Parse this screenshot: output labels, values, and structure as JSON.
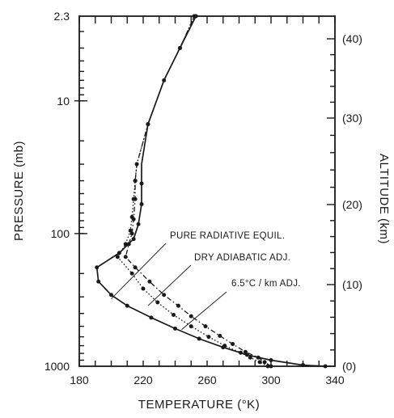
{
  "chart_data": {
    "type": "line",
    "title": "",
    "xlabel": "TEMPERATURE (°K)",
    "ylabel_left": "PRESSURE (mb)",
    "ylabel_right": "ALTITUDE (km)",
    "xlim": [
      180,
      340
    ],
    "ylim": [
      1000,
      2.3
    ],
    "y_scale": "log",
    "x_tick_labels": [
      "180",
      "220",
      "260",
      "300",
      "340"
    ],
    "y_tick_labels": [
      "2.3",
      "10",
      "100",
      "1000"
    ],
    "right_tick_labels": [
      "(40)",
      "(30)",
      "(20)",
      "(10)",
      "(0)"
    ],
    "series": [
      {
        "name": "PURE RADIATIVE EQUIL.",
        "style": "solid",
        "points": [
          {
            "x": 334,
            "y": 1000
          },
          {
            "x": 320,
            "y": 980
          },
          {
            "x": 300,
            "y": 900
          },
          {
            "x": 285,
            "y": 820
          },
          {
            "x": 270,
            "y": 720
          },
          {
            "x": 255,
            "y": 620
          },
          {
            "x": 240,
            "y": 520
          },
          {
            "x": 225,
            "y": 430
          },
          {
            "x": 210,
            "y": 350
          },
          {
            "x": 200,
            "y": 290
          },
          {
            "x": 192,
            "y": 230
          },
          {
            "x": 191,
            "y": 180
          },
          {
            "x": 205,
            "y": 140
          },
          {
            "x": 214,
            "y": 110
          },
          {
            "x": 217,
            "y": 85
          },
          {
            "x": 219,
            "y": 60
          },
          {
            "x": 219,
            "y": 42
          },
          {
            "x": 219,
            "y": 30
          },
          {
            "x": 223,
            "y": 15
          },
          {
            "x": 233,
            "y": 7
          },
          {
            "x": 243,
            "y": 4
          },
          {
            "x": 253,
            "y": 2.3
          }
        ]
      },
      {
        "name": "DRY ADIABATIC ADJ.",
        "style": "dotted",
        "points": [
          {
            "x": 298,
            "y": 1000
          },
          {
            "x": 293,
            "y": 930
          },
          {
            "x": 287,
            "y": 860
          },
          {
            "x": 281,
            "y": 790
          },
          {
            "x": 271,
            "y": 700
          },
          {
            "x": 261,
            "y": 600
          },
          {
            "x": 250,
            "y": 500
          },
          {
            "x": 239,
            "y": 410
          },
          {
            "x": 229,
            "y": 330
          },
          {
            "x": 220,
            "y": 260
          },
          {
            "x": 213,
            "y": 200
          },
          {
            "x": 204,
            "y": 150
          },
          {
            "x": 209,
            "y": 120
          },
          {
            "x": 212,
            "y": 95
          },
          {
            "x": 213,
            "y": 75
          },
          {
            "x": 214,
            "y": 55
          },
          {
            "x": 215,
            "y": 40
          },
          {
            "x": 216,
            "y": 30
          },
          {
            "x": 223,
            "y": 15
          },
          {
            "x": 233,
            "y": 7
          },
          {
            "x": 243,
            "y": 4
          },
          {
            "x": 252,
            "y": 2.3
          }
        ]
      },
      {
        "name": "6.5°C / km ADJ.",
        "style": "dash-dot",
        "points": [
          {
            "x": 300,
            "y": 1000
          },
          {
            "x": 296,
            "y": 930
          },
          {
            "x": 292,
            "y": 860
          },
          {
            "x": 284,
            "y": 780
          },
          {
            "x": 276,
            "y": 680
          },
          {
            "x": 268,
            "y": 590
          },
          {
            "x": 259,
            "y": 500
          },
          {
            "x": 250,
            "y": 420
          },
          {
            "x": 242,
            "y": 350
          },
          {
            "x": 233,
            "y": 290
          },
          {
            "x": 224,
            "y": 230
          },
          {
            "x": 215,
            "y": 180
          },
          {
            "x": 209,
            "y": 150
          },
          {
            "x": 211,
            "y": 120
          },
          {
            "x": 213,
            "y": 100
          },
          {
            "x": 214,
            "y": 78
          },
          {
            "x": 215,
            "y": 55
          },
          {
            "x": 215,
            "y": 40
          },
          {
            "x": 216,
            "y": 30
          },
          {
            "x": 223,
            "y": 15
          },
          {
            "x": 233,
            "y": 7
          },
          {
            "x": 243,
            "y": 4
          },
          {
            "x": 252,
            "y": 2.3
          }
        ]
      }
    ],
    "annotations": [
      {
        "text": "PURE RADIATIVE EQUIL.",
        "series": 0,
        "target": {
          "x": 200,
          "y": 310
        }
      },
      {
        "text": "DRY ADIABATIC ADJ.",
        "series": 1,
        "target": {
          "x": 223,
          "y": 350
        }
      },
      {
        "text": "6.5°C / km ADJ.",
        "series": 2,
        "target": {
          "x": 244,
          "y": 530
        }
      }
    ],
    "grid": false
  }
}
